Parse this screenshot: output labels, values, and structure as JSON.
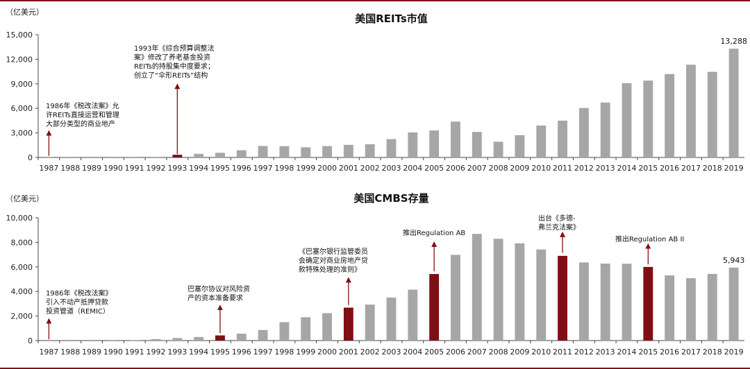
{
  "colors": {
    "bar": "#a6a6a6",
    "highlight": "#7f0f14",
    "rule": "#7a1418"
  },
  "chart_data": [
    {
      "type": "bar",
      "title": "美国REITs市值",
      "unit": "（亿美元）",
      "categories": [
        "1987",
        "1988",
        "1989",
        "1990",
        "1991",
        "1992",
        "1993",
        "1994",
        "1995",
        "1996",
        "1997",
        "1998",
        "1999",
        "2000",
        "2001",
        "2002",
        "2003",
        "2004",
        "2005",
        "2006",
        "2007",
        "2008",
        "2009",
        "2010",
        "2011",
        "2012",
        "2013",
        "2014",
        "2015",
        "2016",
        "2017",
        "2018",
        "2019"
      ],
      "values": [
        10,
        12,
        10,
        9,
        13,
        15,
        330,
        440,
        570,
        880,
        1400,
        1380,
        1240,
        1390,
        1540,
        1610,
        2240,
        3060,
        3300,
        4380,
        3120,
        1920,
        2720,
        3900,
        4500,
        6040,
        6710,
        9080,
        9390,
        10190,
        11330,
        10460,
        13288
      ],
      "highlight": [
        "1993"
      ],
      "ylim": [
        0,
        15000
      ],
      "yticks": [
        "0",
        "3,000",
        "6,000",
        "9,000",
        "12,000",
        "15,000"
      ],
      "ytick_values": [
        0,
        3000,
        6000,
        9000,
        12000,
        15000
      ],
      "data_labels": [
        {
          "category": "2019",
          "text": "13,288"
        }
      ],
      "annotations": [
        {
          "id": "1986",
          "category": "1987",
          "arrow_to_value": 200,
          "arrow_from_value": 3000,
          "lines": [
            "1986年《税改法案》允",
            "许REITs直接运营和管理",
            "大部分类型的商业地产"
          ]
        },
        {
          "id": "1993",
          "category": "1993",
          "arrow_to_value": 400,
          "arrow_from_value": 8700,
          "lines": [
            "1993年《综合预算调整法",
            "案》修改了养老基金投资",
            "REITs的持股集中度要求；",
            "创立了“伞形REITs”结构"
          ]
        }
      ]
    },
    {
      "type": "bar",
      "title": "美国CMBS存量",
      "unit": "（亿美元）",
      "categories": [
        "1987",
        "1988",
        "1989",
        "1990",
        "1991",
        "1992",
        "1993",
        "1994",
        "1995",
        "1996",
        "1997",
        "1998",
        "1999",
        "2000",
        "2001",
        "2002",
        "2003",
        "2004",
        "2005",
        "2006",
        "2007",
        "2008",
        "2009",
        "2010",
        "2011",
        "2012",
        "2013",
        "2014",
        "2015",
        "2016",
        "2017",
        "2018",
        "2019"
      ],
      "values": [
        5,
        5,
        5,
        10,
        40,
        120,
        210,
        290,
        420,
        560,
        860,
        1500,
        1900,
        2230,
        2680,
        2930,
        3500,
        4150,
        5420,
        6980,
        8690,
        8290,
        7920,
        7420,
        6900,
        6360,
        6270,
        6260,
        6000,
        5310,
        5080,
        5430,
        5943
      ],
      "highlight": [
        "1995",
        "2001",
        "2005",
        "2011",
        "2015"
      ],
      "ylim": [
        0,
        10000
      ],
      "yticks": [
        "0",
        "2,000",
        "4,000",
        "6,000",
        "8,000",
        "10,000"
      ],
      "ytick_values": [
        0,
        2000,
        4000,
        6000,
        8000,
        10000
      ],
      "data_labels": [
        {
          "category": "2019",
          "text": "5,943"
        }
      ],
      "annotations": [
        {
          "id": "1986",
          "category": "1987",
          "arrow_to_value": 100,
          "arrow_from_value": 1600,
          "lines": [
            "1986年《税改法案》",
            "引入不动产抵押贷款",
            "投资管道（REMIC）"
          ]
        },
        {
          "id": "basel",
          "category": "1995",
          "arrow_to_value": 600,
          "arrow_from_value": 2700,
          "lines": [
            "巴塞尔协议对风险资",
            "产的资本准备要求"
          ]
        },
        {
          "id": "basel-bank",
          "category": "2001",
          "arrow_to_value": 2900,
          "arrow_from_value": 4950,
          "lines": [
            "《巴塞尔银行监管委员",
            "会确定对商业房地产贷",
            "款特殊处理的准则》"
          ]
        },
        {
          "id": "regab",
          "category": "2005",
          "arrow_to_value": 5650,
          "arrow_from_value": 7850,
          "lines": [
            "推出Regulation AB"
          ]
        },
        {
          "id": "doddfrank",
          "category": "2011",
          "arrow_to_value": 7150,
          "arrow_from_value": 8650,
          "lines": [
            "出台《多德-",
            "弗兰克法案》"
          ]
        },
        {
          "id": "regab2",
          "category": "2015",
          "arrow_to_value": 6200,
          "arrow_from_value": 7700,
          "lines": [
            "推出Regulation AB II"
          ]
        }
      ]
    }
  ]
}
